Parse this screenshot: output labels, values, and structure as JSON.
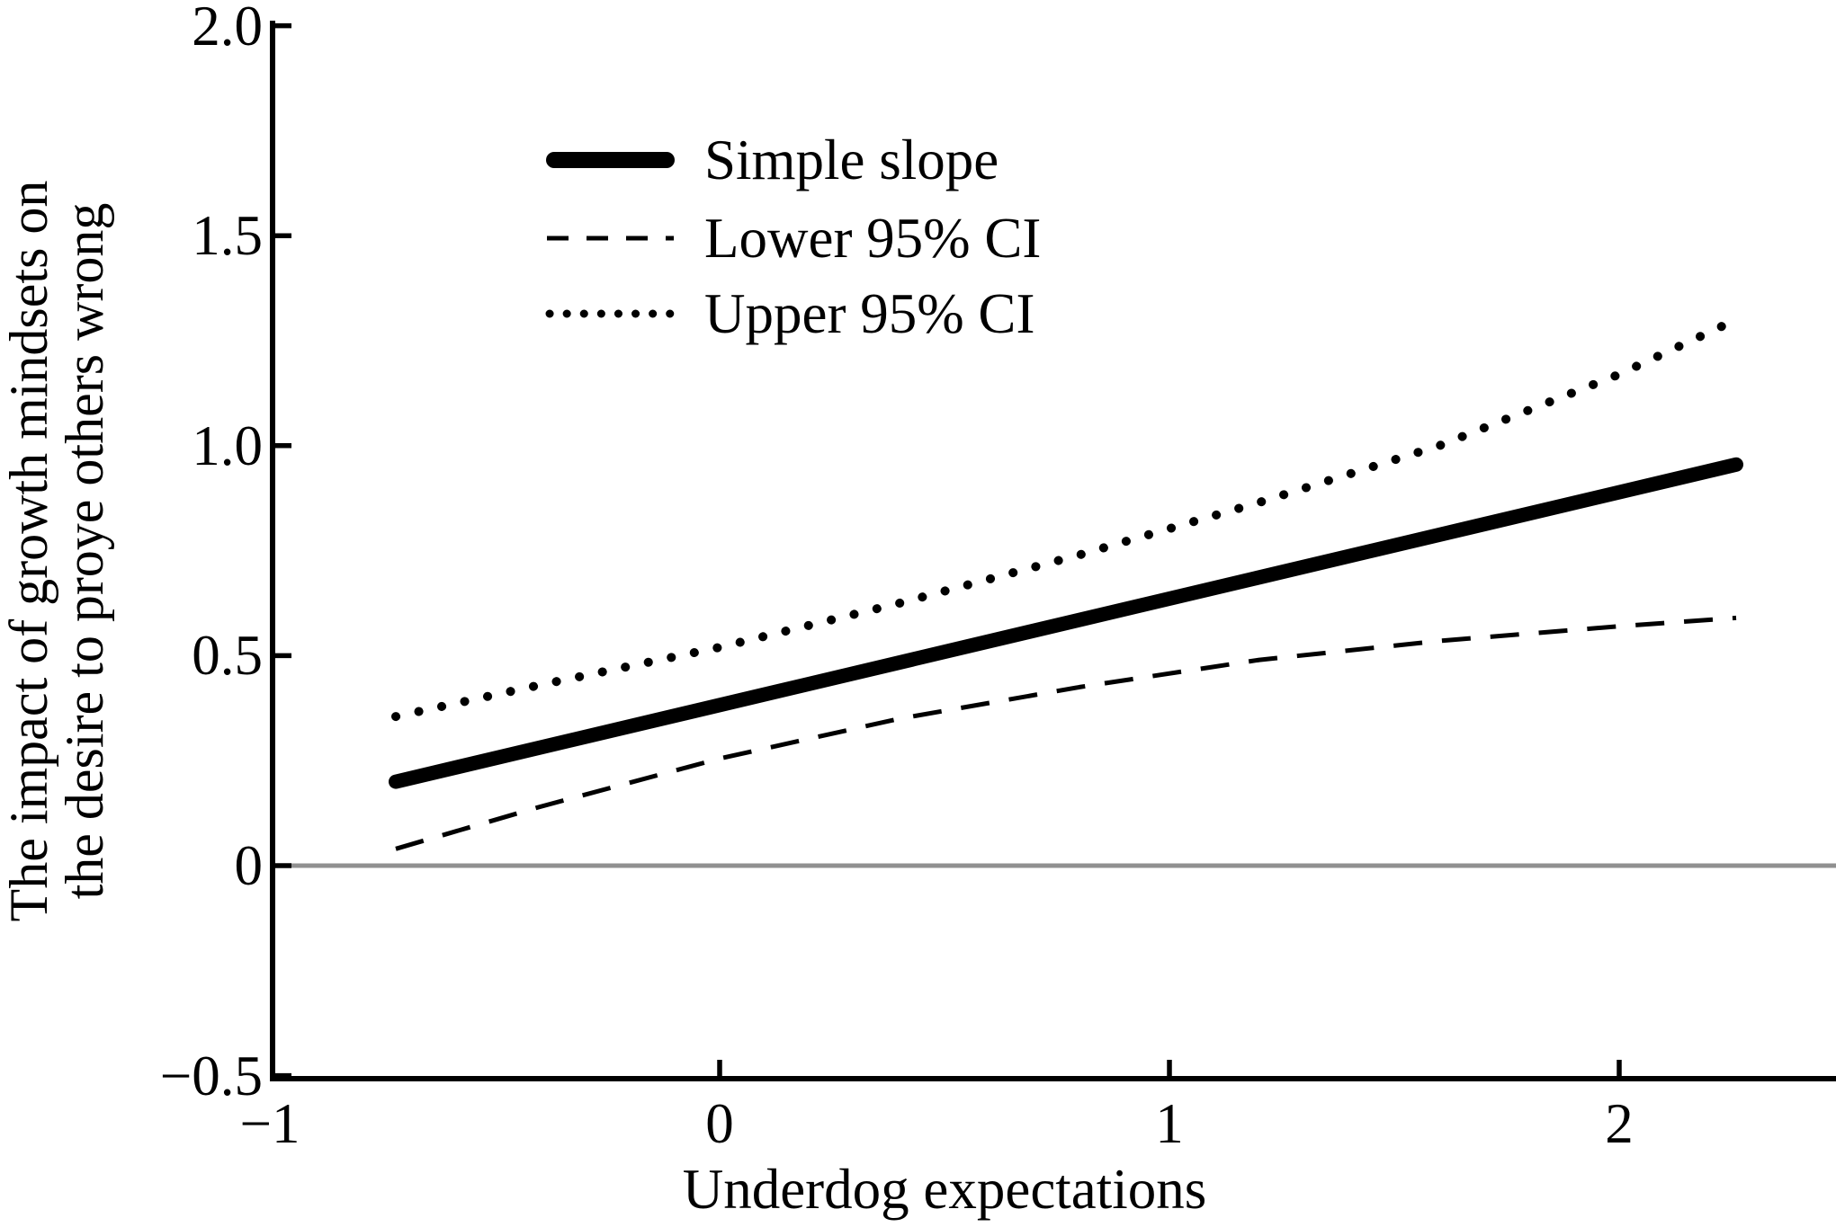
{
  "figure": {
    "y_axis_title_line1": "The impact of growth mindsets on",
    "y_axis_title_line2": "the desire to proye others wrong",
    "x_axis_title": "Underdog expectations"
  },
  "legend": [
    {
      "label": "Simple slope",
      "style": "solid"
    },
    {
      "label": "Lower 95% CI",
      "style": "dashed"
    },
    {
      "label": "Upper 95% CI",
      "style": "dotted"
    }
  ],
  "colors": {
    "line": "#000000",
    "zero_line": "#909090",
    "background": "#ffffff"
  },
  "chart_data": {
    "type": "line",
    "title": "",
    "xlabel": "Underdog expectations",
    "ylabel": "The impact of growth mindsets on the desire to proye others wrong",
    "xlim": [
      -1,
      2.48
    ],
    "ylim": [
      -0.5,
      2.0
    ],
    "grid": false,
    "zero_reference_line": 0,
    "legend_position": "upper-left-inside",
    "x_ticks": [
      -1,
      0,
      1,
      2
    ],
    "x_tick_labels": [
      "−1",
      "0",
      "1",
      "2"
    ],
    "y_ticks": [
      2.0,
      1.5,
      1.0,
      0.5,
      0,
      -0.5
    ],
    "y_tick_labels": [
      "2.0",
      "1.5",
      "1.0",
      "0.5",
      "0",
      "−0.5"
    ],
    "series": [
      {
        "name": "Simple slope",
        "style": "solid",
        "x": [
          -0.72,
          2.26
        ],
        "y": [
          0.2,
          0.955
        ]
      },
      {
        "name": "Lower 95% CI",
        "style": "dashed",
        "x": [
          -0.72,
          -0.4,
          0,
          0.4,
          0.8,
          1.2,
          1.6,
          2.0,
          2.26
        ],
        "y": [
          0.04,
          0.14,
          0.255,
          0.35,
          0.425,
          0.49,
          0.535,
          0.57,
          0.59
        ]
      },
      {
        "name": "Upper 95% CI",
        "style": "dotted",
        "x": [
          -0.72,
          -0.4,
          0,
          0.4,
          0.8,
          1.2,
          1.6,
          2.0,
          2.26
        ],
        "y": [
          0.355,
          0.43,
          0.52,
          0.625,
          0.74,
          0.865,
          1.0,
          1.17,
          1.3
        ]
      }
    ]
  }
}
